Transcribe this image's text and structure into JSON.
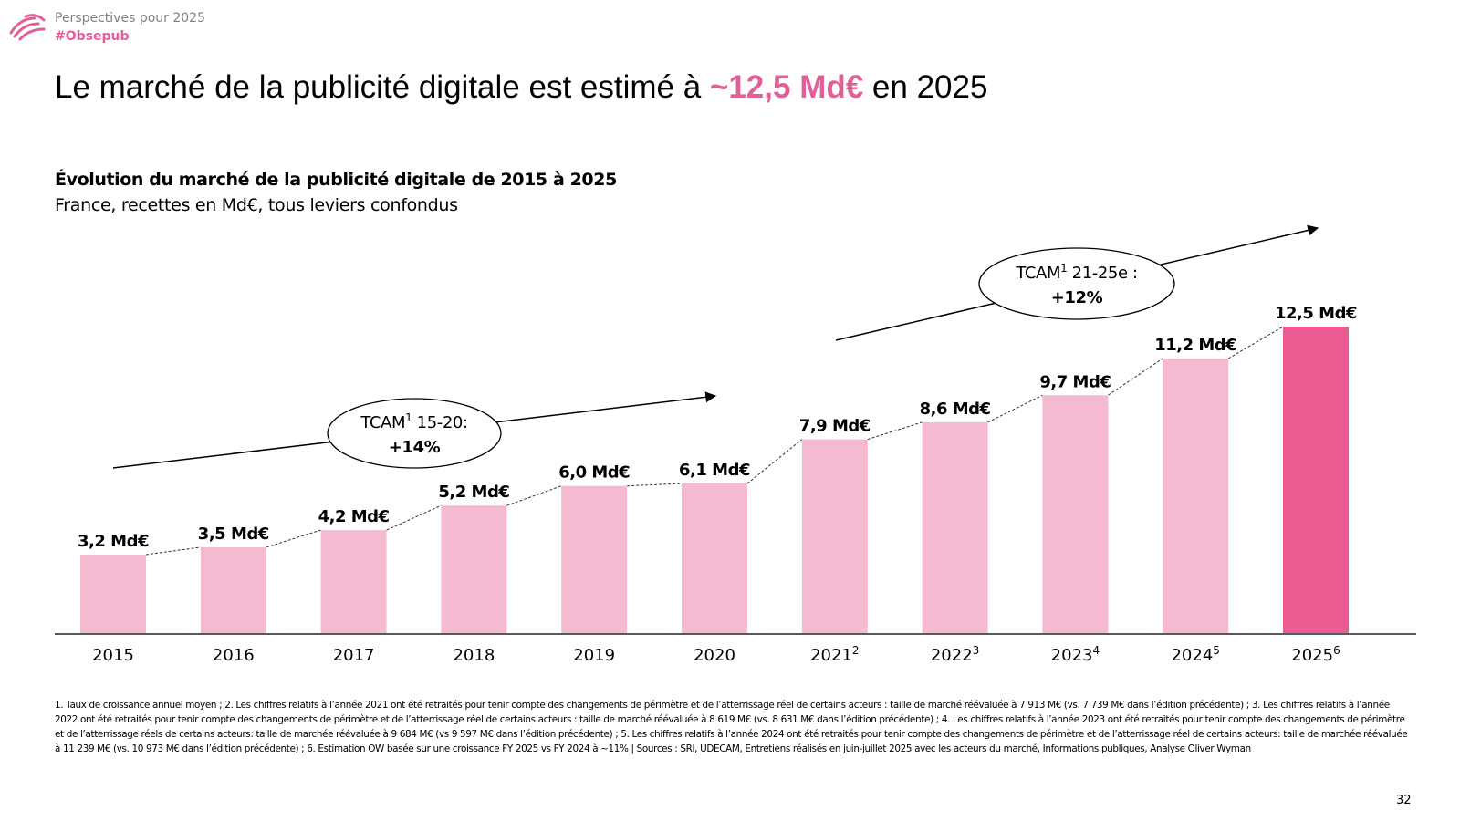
{
  "header": {
    "kicker": "Perspectives pour 2025",
    "hashtag": "#Obsepub",
    "logo_icon": "wave-arcs-logo-icon"
  },
  "headline": {
    "prefix": "Le marché de la publicité digitale est estimé à ",
    "accent": "~12,5 Md€",
    "suffix": " en 2025"
  },
  "colors": {
    "accent": "#e0609a",
    "bar": "#f5bad2",
    "bar_highlight": "#ea5b92",
    "axis": "#595959"
  },
  "chart_data": {
    "type": "bar",
    "title": "Évolution du marché de la publicité digitale de 2015 à 2025",
    "subtitle": "France, recettes en Md€, tous leviers confondus",
    "xlabel": "",
    "ylabel": "",
    "ylim": [
      0,
      12.5
    ],
    "grid": false,
    "categories": [
      "2015",
      "2016",
      "2017",
      "2018",
      "2019",
      "2020",
      "2021",
      "2022",
      "2023",
      "2024",
      "2025"
    ],
    "category_superscripts": [
      "",
      "",
      "",
      "",
      "",
      "",
      "2",
      "3",
      "4",
      "5",
      "6"
    ],
    "values": [
      3.2,
      3.5,
      4.2,
      5.2,
      6.0,
      6.1,
      7.9,
      8.6,
      9.7,
      11.2,
      12.5
    ],
    "data_labels": [
      "3,2 Md€",
      "3,5 Md€",
      "4,2 Md€",
      "5,2 Md€",
      "6,0 Md€",
      "6,1 Md€",
      "7,9 Md€",
      "8,6 Md€",
      "9,7 Md€",
      "11,2 Md€",
      "12,5 Md€"
    ],
    "highlight_index": 10,
    "connector": "dashed lines between bar tops",
    "annotations": [
      {
        "label": "TCAM",
        "sup": "1",
        "period": " 15-20:",
        "value": "+14%",
        "range": [
          "2015",
          "2020"
        ]
      },
      {
        "label": "TCAM",
        "sup": "1",
        "period": " 21-25e :",
        "value": "+12%",
        "range": [
          "2021",
          "2025"
        ]
      }
    ]
  },
  "footnote": "1. Taux de croissance annuel moyen ; 2. Les chiffres relatifs à l’année 2021 ont été retraités pour tenir compte des changements de périmètre et de l’atterrissage réel de certains acteurs : taille de marché réévaluée à 7 913 M€ (vs. 7 739 M€ dans l’édition précédente) ; 3. Les chiffres relatifs à l’année 2022 ont été retraités pour tenir compte des changements de périmètre et de l’atterrissage réel de certains acteurs : taille de marché réévaluée à 8 619 M€ (vs. 8 631 M€ dans l’édition précédente) ; 4. Les chiffres relatifs à l’année 2023 ont été retraités pour tenir compte des changements de périmètre et de l’atterrissage réels de certains acteurs: taille de marchée réévaluée à 9 684 M€ (vs 9 597 M€ dans l’édition précédente) ; 5. Les chiffres relatifs à l’année 2024 ont été retraités pour tenir compte des changements de périmètre et de l’atterrissage réel de certains acteurs: taille de marchée réévaluée à 11 239 M€ (vs. 10 973 M€ dans l’édition précédente) ; 6. Estimation OW basée sur une croissance FY 2025 vs FY 2024 à ~11% | Sources : SRI, UDECAM, Entretiens réalisés en juin-juillet 2025 avec les acteurs du marché, Informations publiques, Analyse Oliver Wyman",
  "page_number": "32"
}
